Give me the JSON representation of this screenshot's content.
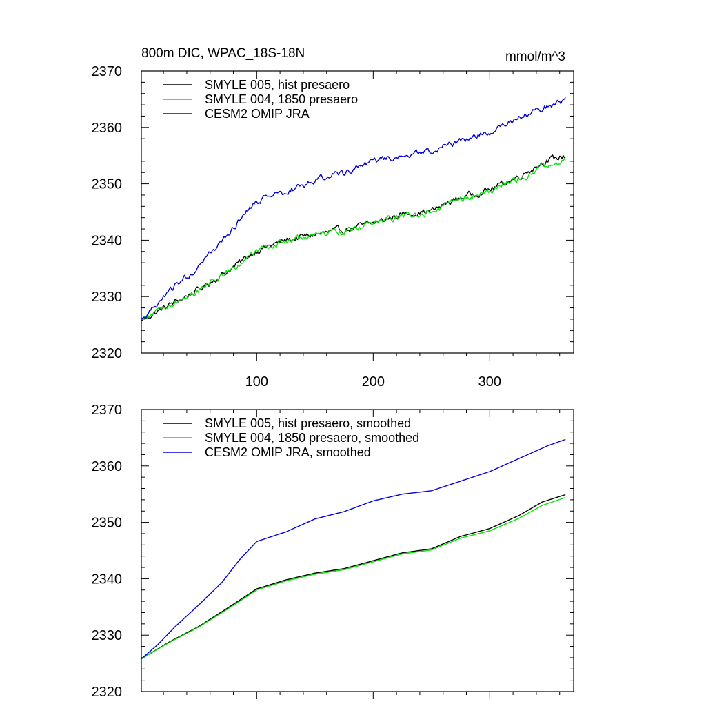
{
  "chart_data": [
    {
      "type": "line",
      "title": "800m DIC, WPAC_18S-18N",
      "units": "mmol/m^3",
      "xlabel": "",
      "ylabel": "",
      "xlim": [
        1,
        372
      ],
      "ylim": [
        2320,
        2370
      ],
      "xticks": [
        100,
        200,
        300
      ],
      "yticks": [
        2320,
        2330,
        2340,
        2350,
        2360,
        2370
      ],
      "noise": true,
      "legend_position": "top-left",
      "series": [
        {
          "name": "SMYLE 005, hist presaero",
          "color": "#000000",
          "points": [
            [
              1,
              2325.8
            ],
            [
              25,
              2328.5
            ],
            [
              50,
              2331.2
            ],
            [
              75,
              2334.5
            ],
            [
              100,
              2338.2
            ],
            [
              125,
              2340.0
            ],
            [
              150,
              2341.0
            ],
            [
              175,
              2341.8
            ],
            [
              200,
              2343.0
            ],
            [
              225,
              2344.6
            ],
            [
              250,
              2345.2
            ],
            [
              275,
              2347.6
            ],
            [
              300,
              2349.0
            ],
            [
              325,
              2351.3
            ],
            [
              345,
              2353.8
            ],
            [
              365,
              2355.0
            ]
          ]
        },
        {
          "name": "SMYLE 004, 1850 presaero",
          "color": "#00e600",
          "points": [
            [
              1,
              2325.8
            ],
            [
              25,
              2328.5
            ],
            [
              50,
              2331.1
            ],
            [
              75,
              2334.4
            ],
            [
              100,
              2338.0
            ],
            [
              125,
              2339.8
            ],
            [
              150,
              2340.8
            ],
            [
              175,
              2341.6
            ],
            [
              200,
              2342.9
            ],
            [
              225,
              2344.4
            ],
            [
              250,
              2345.0
            ],
            [
              275,
              2347.2
            ],
            [
              300,
              2348.6
            ],
            [
              325,
              2350.8
            ],
            [
              345,
              2353.0
            ],
            [
              365,
              2354.3
            ]
          ]
        },
        {
          "name": "CESM2 OMIP JRA",
          "color": "#0000dd",
          "points": [
            [
              1,
              2325.8
            ],
            [
              15,
              2328.5
            ],
            [
              30,
              2331.8
            ],
            [
              50,
              2335.5
            ],
            [
              70,
              2339.5
            ],
            [
              85,
              2343.5
            ],
            [
              100,
              2346.8
            ],
            [
              125,
              2348.5
            ],
            [
              150,
              2350.8
            ],
            [
              175,
              2352.0
            ],
            [
              200,
              2354.0
            ],
            [
              225,
              2355.2
            ],
            [
              250,
              2355.8
            ],
            [
              275,
              2357.5
            ],
            [
              300,
              2359.2
            ],
            [
              325,
              2361.5
            ],
            [
              350,
              2363.8
            ],
            [
              365,
              2364.8
            ]
          ]
        }
      ]
    },
    {
      "type": "line",
      "title": "",
      "xlabel": "",
      "ylabel": "",
      "xlim": [
        1,
        372
      ],
      "ylim": [
        2320,
        2370
      ],
      "xticks": [
        100,
        200,
        300
      ],
      "xtick_labels_shown": false,
      "yticks": [
        2320,
        2330,
        2340,
        2350,
        2360,
        2370
      ],
      "noise": false,
      "legend_position": "top-left",
      "series": [
        {
          "name": "SMYLE 005, hist presaero, smoothed",
          "color": "#000000",
          "points": [
            [
              1,
              2325.8
            ],
            [
              25,
              2328.8
            ],
            [
              50,
              2331.5
            ],
            [
              75,
              2334.8
            ],
            [
              100,
              2338.2
            ],
            [
              125,
              2339.8
            ],
            [
              150,
              2341.0
            ],
            [
              175,
              2341.8
            ],
            [
              200,
              2343.2
            ],
            [
              225,
              2344.6
            ],
            [
              250,
              2345.3
            ],
            [
              275,
              2347.5
            ],
            [
              300,
              2348.9
            ],
            [
              325,
              2351.2
            ],
            [
              345,
              2353.6
            ],
            [
              365,
              2354.9
            ]
          ]
        },
        {
          "name": "SMYLE 004, 1850 presaero, smoothed",
          "color": "#00e600",
          "points": [
            [
              1,
              2325.8
            ],
            [
              25,
              2328.7
            ],
            [
              50,
              2331.4
            ],
            [
              75,
              2334.6
            ],
            [
              100,
              2338.0
            ],
            [
              125,
              2339.6
            ],
            [
              150,
              2340.8
            ],
            [
              175,
              2341.6
            ],
            [
              200,
              2343.0
            ],
            [
              225,
              2344.4
            ],
            [
              250,
              2345.1
            ],
            [
              275,
              2347.2
            ],
            [
              300,
              2348.5
            ],
            [
              325,
              2350.7
            ],
            [
              345,
              2353.0
            ],
            [
              365,
              2354.4
            ]
          ]
        },
        {
          "name": "CESM2 OMIP JRA, smoothed",
          "color": "#0000dd",
          "points": [
            [
              1,
              2325.8
            ],
            [
              15,
              2328.3
            ],
            [
              30,
              2331.5
            ],
            [
              50,
              2335.3
            ],
            [
              70,
              2339.3
            ],
            [
              85,
              2343.3
            ],
            [
              100,
              2346.6
            ],
            [
              125,
              2348.3
            ],
            [
              150,
              2350.6
            ],
            [
              175,
              2351.9
            ],
            [
              200,
              2353.8
            ],
            [
              225,
              2355.0
            ],
            [
              250,
              2355.6
            ],
            [
              275,
              2357.3
            ],
            [
              300,
              2359.0
            ],
            [
              325,
              2361.3
            ],
            [
              350,
              2363.6
            ],
            [
              365,
              2364.7
            ]
          ]
        }
      ]
    }
  ]
}
